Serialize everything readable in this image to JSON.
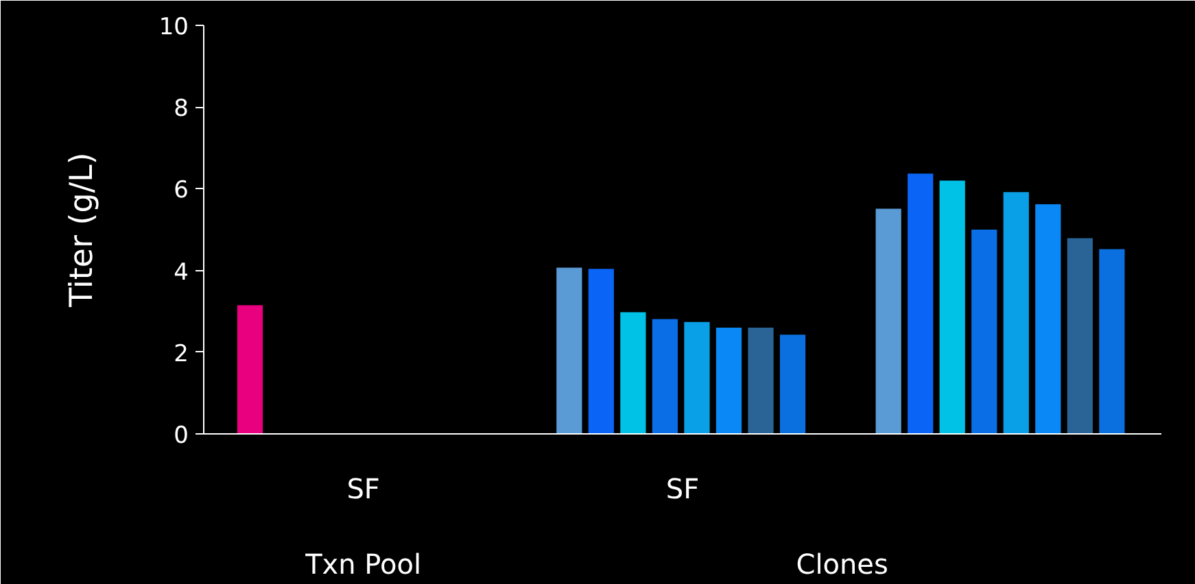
{
  "chart_data": {
    "type": "bar",
    "ylabel": "Titer (g/L)",
    "categories": [
      "SF",
      "SF",
      null
    ],
    "annotations": [
      "Txn Pool",
      "Clones"
    ],
    "series": [
      {
        "colors": [
          "#e8007e",
          "#5b9bd5",
          "#5b9bd5"
        ],
        "values": [
          3.15,
          4.07,
          5.51
        ]
      },
      {
        "color": "#0a64f5",
        "values": [
          null,
          4.04,
          6.37
        ]
      },
      {
        "color": "#00c2e6",
        "values": [
          null,
          2.98,
          6.2
        ]
      },
      {
        "color": "#0a6ee6",
        "values": [
          null,
          2.81,
          5.0
        ]
      },
      {
        "color": "#0aa0e8",
        "values": [
          null,
          2.74,
          5.92
        ]
      },
      {
        "color": "#0a88f5",
        "values": [
          null,
          2.6,
          5.62
        ]
      },
      {
        "color": "#2a6496",
        "values": [
          null,
          2.6,
          4.79
        ]
      },
      {
        "color": "#0a70e0",
        "values": [
          null,
          2.43,
          4.52
        ]
      }
    ],
    "ylim": [
      0,
      10
    ],
    "yticks": [
      0,
      2,
      4,
      6,
      8,
      10
    ],
    "grid": false
  }
}
